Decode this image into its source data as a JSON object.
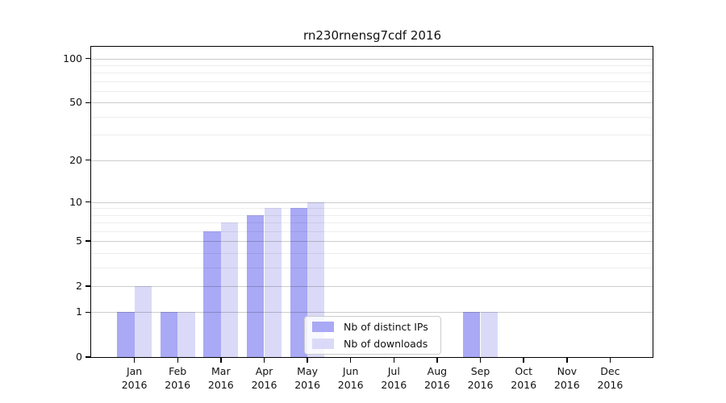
{
  "chart_data": {
    "type": "bar",
    "title": "rn230rnensg7cdf 2016",
    "months": [
      "Jan",
      "Feb",
      "Mar",
      "Apr",
      "May",
      "Jun",
      "Jul",
      "Aug",
      "Sep",
      "Oct",
      "Nov",
      "Dec"
    ],
    "year": "2016",
    "categories": [
      "Jan 2016",
      "Feb 2016",
      "Mar 2016",
      "Apr 2016",
      "May 2016",
      "Jun 2016",
      "Jul 2016",
      "Aug 2016",
      "Sep 2016",
      "Oct 2016",
      "Nov 2016",
      "Dec 2016"
    ],
    "series": [
      {
        "name": "Nb of distinct IPs",
        "color": "#a9a9f6",
        "values": [
          1,
          1,
          6,
          8,
          9,
          0,
          0,
          0,
          1,
          0,
          0,
          0
        ]
      },
      {
        "name": "Nb of downloads",
        "color": "#dadaf8",
        "values": [
          2,
          1,
          7,
          9,
          10,
          0,
          0,
          0,
          1,
          0,
          0,
          0
        ]
      }
    ],
    "yscale": "log1p",
    "yticks": [
      0,
      1,
      2,
      5,
      10,
      20,
      50,
      100
    ],
    "minor_gridlines": [
      3,
      4,
      6,
      7,
      8,
      9,
      30,
      40,
      60,
      70,
      80,
      90
    ],
    "ylim": [
      0,
      120
    ],
    "grid": true,
    "legend_position": "lower center",
    "colors": {
      "background": "#ffffff",
      "frame": "#000000",
      "grid_major": "#cccccc",
      "grid_minor": "#ededed",
      "legend_border": "#cccccc"
    }
  }
}
